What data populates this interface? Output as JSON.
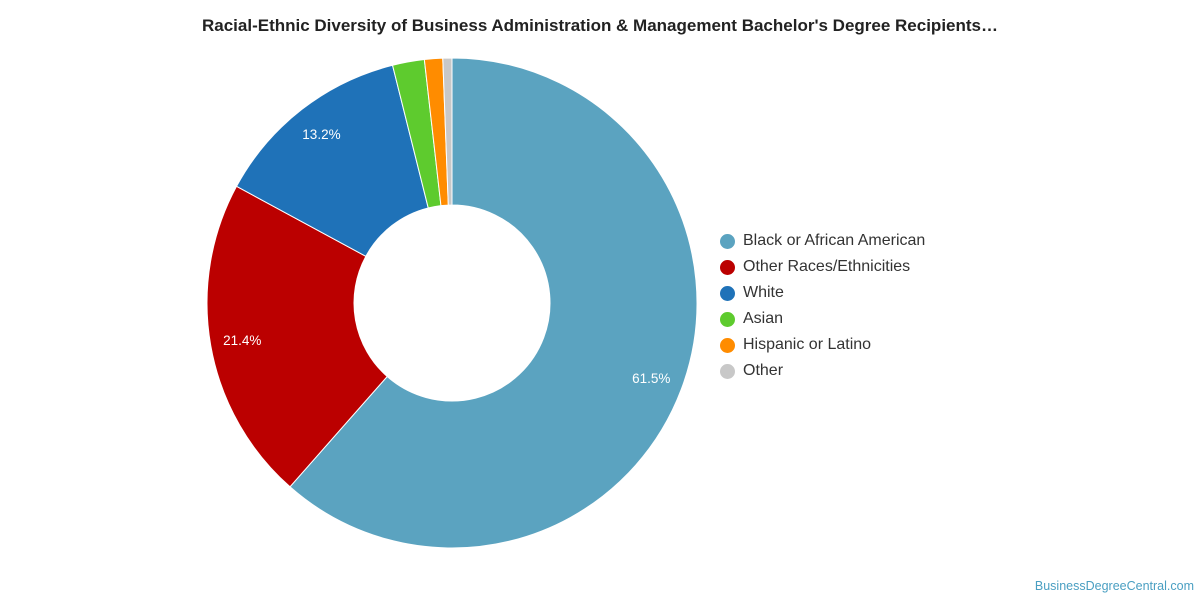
{
  "chart_data": {
    "type": "pie",
    "title": "Racial-Ethnic Diversity of Business Administration & Management Bachelor's Degree Recipients…",
    "legend_position": "right",
    "slices": [
      {
        "name": "Black or African American",
        "value": 61.5,
        "label": "61.5%",
        "color": "#5ba3c0"
      },
      {
        "name": "Other Races/Ethnicities",
        "value": 21.4,
        "label": "21.4%",
        "color": "#bb0000"
      },
      {
        "name": "White",
        "value": 13.2,
        "label": "13.2%",
        "color": "#1f72b8"
      },
      {
        "name": "Asian",
        "value": 2.1,
        "label": "",
        "color": "#5ecb2e"
      },
      {
        "name": "Hispanic or Latino",
        "value": 1.2,
        "label": "",
        "color": "#ff8c00"
      },
      {
        "name": "Other",
        "value": 0.6,
        "label": "",
        "color": "#c8c8c8"
      }
    ]
  },
  "credit": "BusinessDegreeCentral.com"
}
